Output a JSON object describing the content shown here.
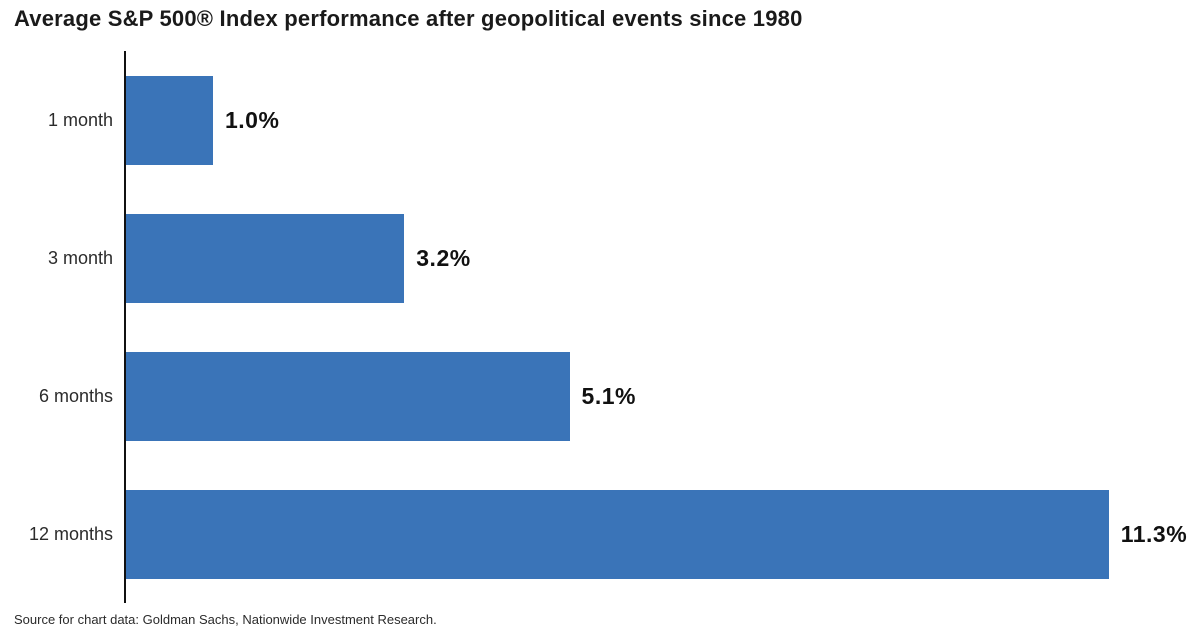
{
  "title": "Average S&P 500® Index performance after geopolitical events since 1980",
  "source": "Source for chart data: Goldman Sachs, Nationwide Investment Research.",
  "colors": {
    "bar": "#3A74B8",
    "axis": "#111111",
    "title_text": "#1A1A1A",
    "category_text": "#2B2B2B",
    "value_text": "#111111"
  },
  "chart_data": {
    "type": "bar",
    "orientation": "horizontal",
    "title": "Average S&P 500® Index performance after geopolitical events since 1980",
    "categories": [
      "1 month",
      "3 month",
      "6 months",
      "12 months"
    ],
    "values": [
      1.0,
      3.2,
      5.1,
      11.3
    ],
    "value_labels": [
      "1.0%",
      "3.2%",
      "5.1%",
      "11.3%"
    ],
    "xlabel": "",
    "ylabel": "",
    "xlim": [
      0,
      12.35
    ],
    "grid": false,
    "legend": null,
    "bar_color": "#3A74B8"
  }
}
